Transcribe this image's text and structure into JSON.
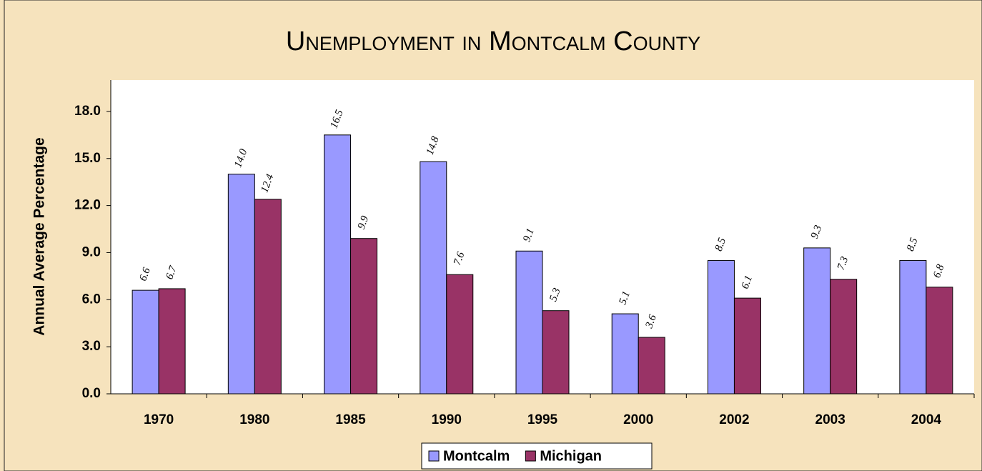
{
  "chart_data": {
    "type": "bar",
    "title": "Unemployment in Montcalm County",
    "y_label": "Annual Average Percentage",
    "categories": [
      "1970",
      "1980",
      "1985",
      "1990",
      "1995",
      "2000",
      "2002",
      "2003",
      "2004"
    ],
    "series": [
      {
        "name": "Montcalm",
        "color": "#9999ff",
        "values": [
          6.6,
          14.0,
          16.5,
          14.8,
          9.1,
          5.1,
          8.5,
          9.3,
          8.5
        ],
        "value_labels": [
          "6.6",
          "14.0",
          "16.5",
          "14.8",
          "9.1",
          "5.1",
          "8.5",
          "9.3",
          "8.5"
        ]
      },
      {
        "name": "Michigan",
        "color": "#993366",
        "values": [
          6.7,
          12.4,
          9.9,
          7.6,
          5.3,
          3.6,
          6.1,
          7.3,
          6.8
        ],
        "value_labels": [
          "6.7",
          "12.4",
          "9.9",
          "7.6",
          "5.3",
          "3.6",
          "6.1",
          "7.3",
          "6.8"
        ]
      }
    ],
    "ylim": [
      0,
      20
    ],
    "yticks": [
      {
        "value": 0,
        "label": "0.0"
      },
      {
        "value": 3,
        "label": "3.0"
      },
      {
        "value": 6,
        "label": "6.0"
      },
      {
        "value": 9,
        "label": "9.0"
      },
      {
        "value": 12,
        "label": "12.0"
      },
      {
        "value": 15,
        "label": "15.0"
      },
      {
        "value": 18,
        "label": "18.0"
      }
    ],
    "legend": "bottom"
  }
}
